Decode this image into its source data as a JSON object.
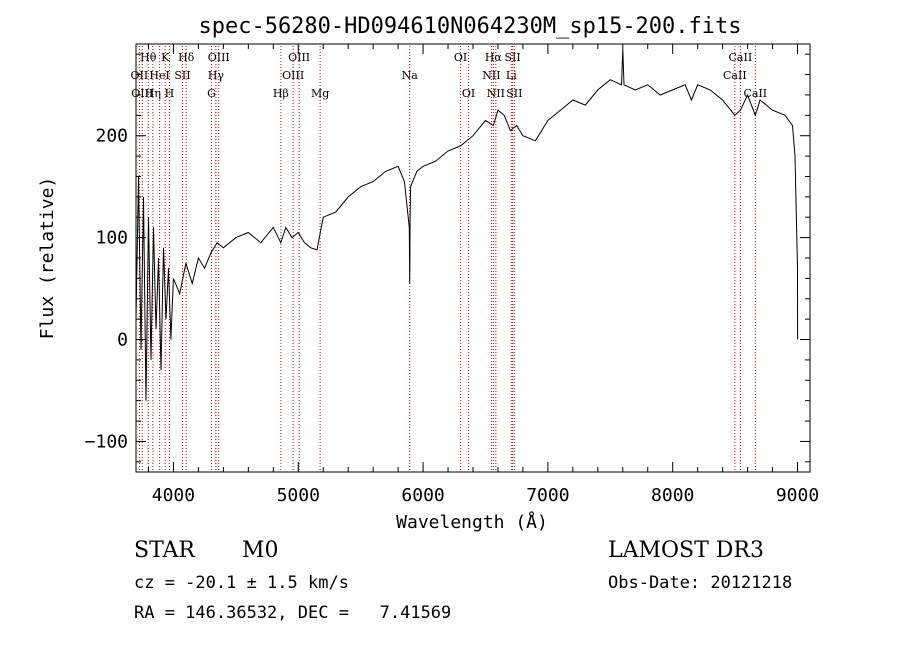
{
  "chart_data": {
    "type": "line",
    "title": "spec-56280-HD094610N064230M_sp15-200.fits",
    "xlabel": "Wavelength (Å)",
    "ylabel": "Flux (relative)",
    "xlim": [
      3700,
      9100
    ],
    "ylim": [
      -130,
      290
    ],
    "xticks": [
      4000,
      5000,
      6000,
      7000,
      8000,
      9000
    ],
    "yticks": [
      -100,
      0,
      100,
      200
    ],
    "series": [
      {
        "name": "spectrum",
        "x": [
          3700,
          3720,
          3740,
          3760,
          3780,
          3800,
          3820,
          3840,
          3860,
          3880,
          3900,
          3920,
          3940,
          3960,
          3980,
          4000,
          4050,
          4100,
          4150,
          4200,
          4250,
          4300,
          4350,
          4400,
          4500,
          4600,
          4700,
          4800,
          4860,
          4900,
          4950,
          5000,
          5050,
          5100,
          5150,
          5200,
          5300,
          5400,
          5500,
          5600,
          5700,
          5800,
          5850,
          5890,
          5893,
          5896,
          5900,
          5950,
          6000,
          6100,
          6200,
          6300,
          6400,
          6500,
          6563,
          6600,
          6650,
          6700,
          6750,
          6800,
          6900,
          7000,
          7100,
          7200,
          7300,
          7400,
          7500,
          7590,
          7600,
          7610,
          7700,
          7800,
          7900,
          8000,
          8100,
          8150,
          8200,
          8300,
          8400,
          8498,
          8542,
          8600,
          8662,
          8700,
          8800,
          8900,
          8960,
          8980,
          9000,
          9001
        ],
        "y": [
          20,
          160,
          -10,
          140,
          -60,
          120,
          -20,
          110,
          10,
          80,
          -30,
          90,
          20,
          70,
          0,
          60,
          45,
          75,
          55,
          80,
          70,
          85,
          95,
          90,
          100,
          105,
          95,
          110,
          95,
          110,
          100,
          105,
          95,
          90,
          88,
          120,
          125,
          140,
          150,
          155,
          165,
          170,
          155,
          110,
          55,
          120,
          150,
          165,
          170,
          175,
          185,
          190,
          200,
          215,
          210,
          225,
          220,
          205,
          210,
          200,
          195,
          215,
          225,
          235,
          230,
          245,
          255,
          250,
          285,
          250,
          245,
          250,
          240,
          245,
          250,
          235,
          250,
          245,
          235,
          220,
          225,
          240,
          220,
          235,
          225,
          220,
          210,
          180,
          70,
          0
        ]
      }
    ],
    "line_ids": [
      {
        "label": "Hθ",
        "wl": 3798,
        "row": 0
      },
      {
        "label": "K",
        "wl": 3934,
        "row": 0
      },
      {
        "label": "Hδ",
        "wl": 4102,
        "row": 0
      },
      {
        "label": "OIII",
        "wl": 4363,
        "row": 0
      },
      {
        "label": "OIII",
        "wl": 5007,
        "row": 0
      },
      {
        "label": "OI",
        "wl": 6300,
        "row": 0
      },
      {
        "label": "Hα",
        "wl": 6563,
        "row": 0
      },
      {
        "label": "SII",
        "wl": 6717,
        "row": 0
      },
      {
        "label": "CaII",
        "wl": 8542,
        "row": 0
      },
      {
        "label": "OII",
        "wl": 3727,
        "row": 1
      },
      {
        "label": "HeI",
        "wl": 3889,
        "row": 1
      },
      {
        "label": "SII",
        "wl": 4072,
        "row": 1
      },
      {
        "label": "Hγ",
        "wl": 4340,
        "row": 1
      },
      {
        "label": "OIII",
        "wl": 4959,
        "row": 1
      },
      {
        "label": "Na",
        "wl": 5893,
        "row": 1
      },
      {
        "label": "NII",
        "wl": 6548,
        "row": 1
      },
      {
        "label": "Li",
        "wl": 6707,
        "row": 1
      },
      {
        "label": "CaII",
        "wl": 8498,
        "row": 1
      },
      {
        "label": "OIII",
        "wl": 3750,
        "row": 2
      },
      {
        "label": "Hη",
        "wl": 3835,
        "row": 2
      },
      {
        "label": "H",
        "wl": 3968,
        "row": 2
      },
      {
        "label": "G",
        "wl": 4305,
        "row": 2
      },
      {
        "label": "Hβ",
        "wl": 4861,
        "row": 2
      },
      {
        "label": "Mg",
        "wl": 5175,
        "row": 2
      },
      {
        "label": "OI",
        "wl": 6364,
        "row": 2
      },
      {
        "label": "NII",
        "wl": 6583,
        "row": 2
      },
      {
        "label": "SII",
        "wl": 6731,
        "row": 2
      },
      {
        "label": "CaII",
        "wl": 8662,
        "row": 2
      }
    ]
  },
  "info": {
    "object_class": "STAR",
    "subclass": "M0",
    "survey": "LAMOST DR3",
    "cz": "cz = -20.1 ± 1.5 km/s",
    "obs_date": "Obs-Date: 20121218",
    "coords": "RA = 146.36532, DEC =   7.41569"
  },
  "colors": {
    "spectrum": "#000000",
    "line_marker": "#cc0000"
  }
}
